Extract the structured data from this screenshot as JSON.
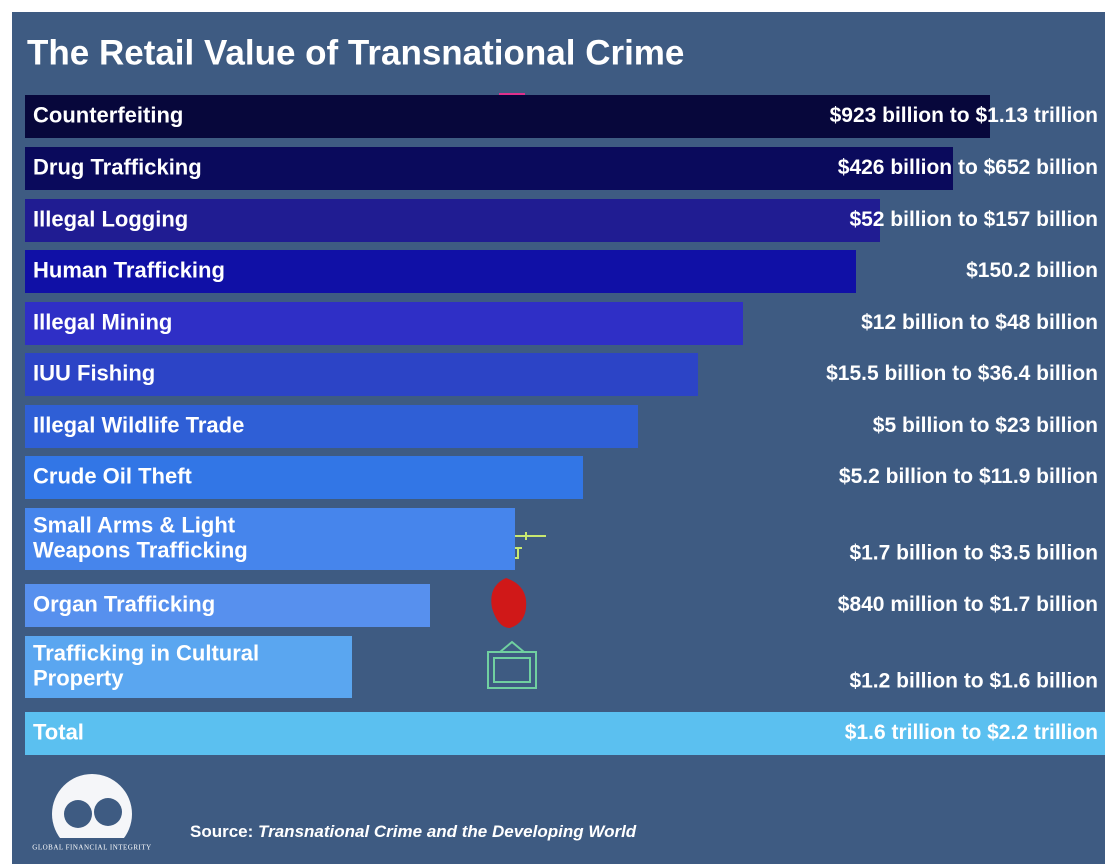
{
  "header": {
    "title": "The Retail Value of Transnational Crime"
  },
  "rows": [
    {
      "label": [
        "Counterfeiting"
      ],
      "value": "$923 billion to $1.13 trillion",
      "color": "#07073b"
    },
    {
      "label": [
        "Drug Trafficking"
      ],
      "value": "$426 billion to $652 billion",
      "color": "#0a0a5c"
    },
    {
      "label": [
        "Illegal Logging"
      ],
      "value": "$52 billion to $157 billion",
      "color": "#201c92"
    },
    {
      "label": [
        "Human Trafficking"
      ],
      "value": "$150.2 billion",
      "color": "#1010a6"
    },
    {
      "label": [
        "Illegal Mining"
      ],
      "value": "$12 billion to $48 billion",
      "color": "#2f2fc6"
    },
    {
      "label": [
        "IUU Fishing"
      ],
      "value": "$15.5 billion to $36.4 billion",
      "color": "#2c44c6"
    },
    {
      "label": [
        "Illegal Wildlife Trade"
      ],
      "value": "$5 billion to $23 billion",
      "color": "#2f5fd6"
    },
    {
      "label": [
        "Crude Oil Theft"
      ],
      "value": "$5.2 billion to $11.9 billion",
      "color": "#3276e6"
    },
    {
      "label": [
        "Small Arms & Light",
        "Weapons Trafficking"
      ],
      "value": "$1.7 billion to $3.5 billion",
      "color": "#4685ec"
    },
    {
      "label": [
        "Organ Trafficking"
      ],
      "value": "$840 million to $1.7 billion",
      "color": "#5790ee"
    },
    {
      "label": [
        "Trafficking in Cultural",
        "Property"
      ],
      "value": "$1.2 billion to $1.6 billion",
      "color": "#5aa6f0"
    },
    {
      "label": [
        "Total"
      ],
      "value": "$1.6 trillion to $2.2 trillion",
      "color": "#5bc0f0"
    }
  ],
  "footer": {
    "logo_text": "Global Financial Integrity",
    "source_label": "Source:",
    "source": "Transnational Crime and the Developing World"
  }
}
